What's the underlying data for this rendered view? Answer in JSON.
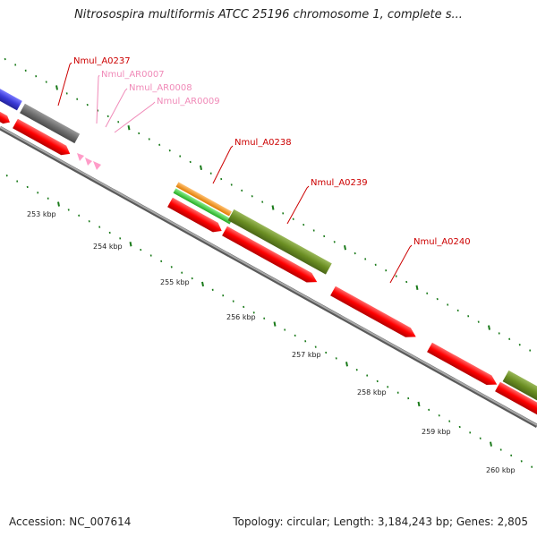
{
  "title": "Nitrosospira multiformis ATCC 25196 chromosome 1, complete s...",
  "footer": {
    "accession": "Accession: NC_007614",
    "summary": "Topology: circular; Length: 3,184,243 bp; Genes: 2,805"
  },
  "colors": {
    "backbone": "#8a8a8a",
    "tick": "#1a7a1a",
    "label_main": "#cc0000",
    "label_rna": "#f08ab8",
    "cds": "#ff0000",
    "rna": "#ff9cc8"
  },
  "scale_labels": [
    "253 kbp",
    "254 kbp",
    "255 kbp",
    "256 kbp",
    "257 kbp",
    "258 kbp",
    "259 kbp",
    "260 kbp"
  ],
  "gene_labels": [
    {
      "text": "Nmul_A0237",
      "kind": "cds"
    },
    {
      "text": "Nmul_AR0007",
      "kind": "rna"
    },
    {
      "text": "Nmul_AR0008",
      "kind": "rna"
    },
    {
      "text": "Nmul_AR0009",
      "kind": "rna"
    },
    {
      "text": "Nmul_A0238",
      "kind": "cds"
    },
    {
      "text": "Nmul_A0239",
      "kind": "cds"
    },
    {
      "text": "Nmul_A0240",
      "kind": "cds"
    }
  ],
  "features": [
    {
      "name": "gene-blue",
      "color": "#3a3ad8"
    },
    {
      "name": "gene-gray",
      "color": "#6e6e6e"
    },
    {
      "name": "gene-orange",
      "color": "#ff9a1a"
    },
    {
      "name": "gene-green",
      "color": "#44cc44"
    },
    {
      "name": "gene-olive-1",
      "color": "#6b8e23"
    },
    {
      "name": "gene-olive-2",
      "color": "#6b8e23"
    }
  ]
}
